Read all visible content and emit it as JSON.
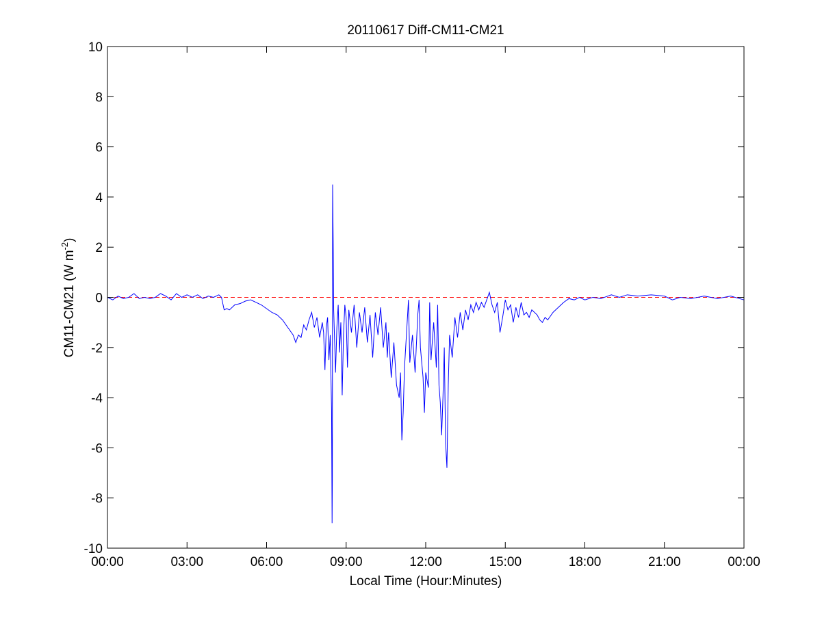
{
  "chart_data": {
    "type": "line",
    "title": "20110617 Diff-CM11-CM21",
    "x_label": "Local Time (Hour:Minutes)",
    "y_label": [
      "CM11-CM21 (W m",
      "-2",
      ")"
    ],
    "x": [
      0.0,
      0.2,
      0.4,
      0.6,
      0.8,
      1.0,
      1.2,
      1.4,
      1.6,
      1.8,
      2.0,
      2.2,
      2.4,
      2.6,
      2.8,
      3.0,
      3.2,
      3.4,
      3.6,
      3.8,
      4.0,
      4.2,
      4.3,
      4.4,
      4.5,
      4.6,
      4.8,
      5.0,
      5.2,
      5.4,
      5.6,
      5.8,
      6.0,
      6.2,
      6.4,
      6.6,
      6.8,
      7.0,
      7.1,
      7.2,
      7.3,
      7.4,
      7.5,
      7.6,
      7.7,
      7.8,
      7.9,
      8.0,
      8.1,
      8.15,
      8.2,
      8.25,
      8.3,
      8.35,
      8.4,
      8.45,
      8.47,
      8.48,
      8.49,
      8.51,
      8.53,
      8.6,
      8.65,
      8.7,
      8.75,
      8.8,
      8.85,
      8.9,
      8.95,
      9.0,
      9.05,
      9.1,
      9.2,
      9.3,
      9.4,
      9.5,
      9.6,
      9.7,
      9.8,
      9.9,
      10.0,
      10.1,
      10.2,
      10.3,
      10.4,
      10.5,
      10.55,
      10.6,
      10.7,
      10.8,
      10.9,
      11.0,
      11.05,
      11.1,
      11.15,
      11.2,
      11.3,
      11.35,
      11.4,
      11.5,
      11.6,
      11.7,
      11.75,
      11.8,
      11.9,
      11.95,
      12.0,
      12.1,
      12.15,
      12.2,
      12.3,
      12.4,
      12.45,
      12.5,
      12.55,
      12.6,
      12.65,
      12.7,
      12.75,
      12.8,
      12.85,
      12.9,
      13.0,
      13.1,
      13.2,
      13.3,
      13.4,
      13.5,
      13.6,
      13.7,
      13.8,
      13.9,
      14.0,
      14.1,
      14.2,
      14.3,
      14.4,
      14.5,
      14.6,
      14.7,
      14.8,
      14.9,
      15.0,
      15.1,
      15.2,
      15.3,
      15.4,
      15.5,
      15.6,
      15.7,
      15.8,
      15.9,
      16.0,
      16.2,
      16.3,
      16.4,
      16.5,
      16.6,
      16.8,
      17.0,
      17.2,
      17.4,
      17.6,
      17.8,
      18.0,
      18.3,
      18.6,
      19.0,
      19.3,
      19.6,
      20.0,
      20.5,
      21.0,
      21.3,
      21.6,
      22.0,
      22.5,
      23.0,
      23.5,
      24.0
    ],
    "series": [
      {
        "color": "#0000ff",
        "values": [
          0.0,
          -0.1,
          0.05,
          -0.05,
          0.0,
          0.15,
          -0.05,
          0.0,
          -0.05,
          0.0,
          0.15,
          0.05,
          -0.1,
          0.15,
          0.0,
          0.1,
          0.0,
          0.1,
          -0.05,
          0.05,
          0.0,
          0.1,
          0.0,
          -0.5,
          -0.45,
          -0.5,
          -0.3,
          -0.25,
          -0.15,
          -0.1,
          -0.2,
          -0.3,
          -0.45,
          -0.6,
          -0.7,
          -0.9,
          -1.2,
          -1.5,
          -1.8,
          -1.5,
          -1.6,
          -1.1,
          -1.3,
          -0.9,
          -0.6,
          -1.2,
          -0.8,
          -1.6,
          -1.0,
          -1.4,
          -2.9,
          -1.2,
          -0.8,
          -2.5,
          -1.5,
          -4.5,
          -9.0,
          -7.2,
          4.5,
          2.3,
          -0.5,
          -3.0,
          -1.2,
          -0.3,
          -2.2,
          -1.0,
          -3.9,
          -1.5,
          -0.3,
          -0.8,
          -2.8,
          -0.5,
          -1.4,
          -0.3,
          -2.0,
          -0.6,
          -1.4,
          -0.4,
          -1.8,
          -0.7,
          -2.4,
          -0.6,
          -1.5,
          -0.4,
          -2.0,
          -1.0,
          -2.4,
          -1.4,
          -3.2,
          -1.8,
          -3.5,
          -4.0,
          -3.0,
          -5.7,
          -4.6,
          -2.8,
          -1.0,
          -0.1,
          -2.6,
          -1.5,
          -3.0,
          -0.7,
          -0.1,
          -2.0,
          -3.2,
          -4.6,
          -3.0,
          -3.6,
          -0.2,
          -2.5,
          -1.0,
          -2.8,
          -0.3,
          -3.5,
          -4.2,
          -5.5,
          -4.0,
          -2.0,
          -5.8,
          -6.8,
          -3.5,
          -1.5,
          -2.4,
          -0.8,
          -1.6,
          -0.6,
          -1.3,
          -0.5,
          -0.9,
          -0.3,
          -0.6,
          -0.2,
          -0.5,
          -0.2,
          -0.4,
          -0.1,
          0.2,
          -0.3,
          -0.6,
          -0.2,
          -1.4,
          -0.8,
          -0.1,
          -0.5,
          -0.3,
          -1.0,
          -0.4,
          -0.8,
          -0.2,
          -0.7,
          -0.6,
          -0.8,
          -0.5,
          -0.7,
          -0.9,
          -1.0,
          -0.8,
          -0.9,
          -0.6,
          -0.4,
          -0.2,
          -0.05,
          -0.1,
          0.0,
          -0.1,
          0.0,
          -0.05,
          0.1,
          0.0,
          0.1,
          0.05,
          0.1,
          0.05,
          -0.1,
          0.0,
          -0.05,
          0.05,
          -0.05,
          0.05,
          -0.1
        ]
      }
    ],
    "reference_line": {
      "y": 0,
      "color": "#ff0000",
      "style": "dashed"
    },
    "xlim": [
      0,
      24
    ],
    "xticks": [
      {
        "value": 0,
        "label": "00:00"
      },
      {
        "value": 3,
        "label": "03:00"
      },
      {
        "value": 6,
        "label": "06:00"
      },
      {
        "value": 9,
        "label": "09:00"
      },
      {
        "value": 12,
        "label": "12:00"
      },
      {
        "value": 15,
        "label": "15:00"
      },
      {
        "value": 18,
        "label": "18:00"
      },
      {
        "value": 21,
        "label": "21:00"
      },
      {
        "value": 24,
        "label": "00:00"
      }
    ],
    "ylim": [
      -10,
      10
    ],
    "yticks": [
      -10,
      -8,
      -6,
      -4,
      -2,
      0,
      2,
      4,
      6,
      8,
      10
    ],
    "grid": false
  }
}
